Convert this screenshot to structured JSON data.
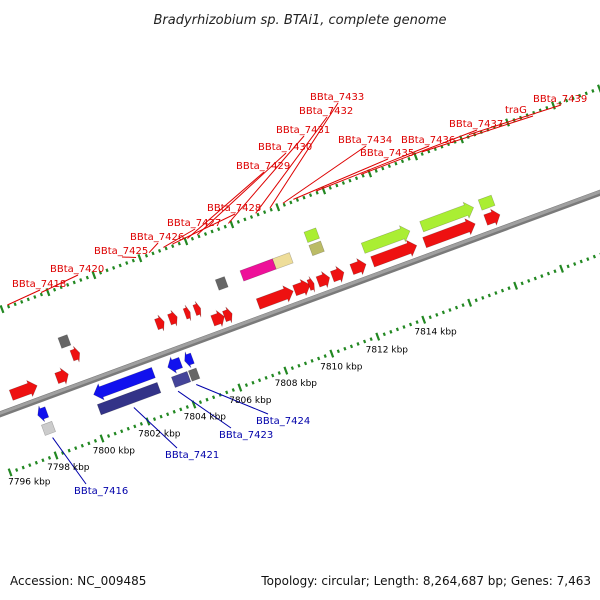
{
  "title": "Bradyrhizobium sp. BTAi1, complete genome",
  "footer": {
    "accession": "Accession: NC_009485",
    "summary": "Topology: circular; Length: 8,264,687 bp; Genes: 7,463"
  },
  "colors": {
    "label_top": "#dd0000",
    "label_bottom": "#0000aa",
    "backbone": "#a0a0a0",
    "tick": "#228822"
  },
  "scale_labels": [
    {
      "t": 0.02,
      "text": "7796 kbp"
    },
    {
      "t": 0.08,
      "text": "7798 kbp"
    },
    {
      "t": 0.15,
      "text": "7800 kbp"
    },
    {
      "t": 0.22,
      "text": "7802 kbp"
    },
    {
      "t": 0.29,
      "text": "7804 kbp"
    },
    {
      "t": 0.36,
      "text": "7806 kbp"
    },
    {
      "t": 0.43,
      "text": "7808 kbp"
    },
    {
      "t": 0.5,
      "text": "7810 kbp"
    },
    {
      "t": 0.57,
      "text": "7812 kbp"
    },
    {
      "t": 0.645,
      "text": "7814 kbp"
    }
  ],
  "genes": [
    {
      "t": 0.0,
      "len": 0.015,
      "lane": 1,
      "dir": "L",
      "color": "#ee1111"
    },
    {
      "t": 0.04,
      "len": 0.04,
      "lane": 1,
      "dir": "R",
      "color": "#ee1111"
    },
    {
      "t": 0.11,
      "len": 0.018,
      "lane": 1,
      "dir": "R",
      "color": "#ee1111"
    },
    {
      "t": 0.142,
      "len": 0.012,
      "lane": 2,
      "dir": "R",
      "color": "#ee1111"
    },
    {
      "t": 0.132,
      "len": 0.014,
      "lane": 3,
      "dir": "N",
      "color": "#666666"
    },
    {
      "t": 0.272,
      "len": 0.012,
      "lane": 2,
      "dir": "R",
      "color": "#ee1111"
    },
    {
      "t": 0.292,
      "len": 0.012,
      "lane": 2,
      "dir": "R",
      "color": "#ee1111"
    },
    {
      "t": 0.316,
      "len": 0.008,
      "lane": 2,
      "dir": "R",
      "color": "#ee1111"
    },
    {
      "t": 0.331,
      "len": 0.009,
      "lane": 2,
      "dir": "R",
      "color": "#ee1111"
    },
    {
      "t": 0.35,
      "len": 0.018,
      "lane": 1,
      "dir": "R",
      "color": "#ee1111"
    },
    {
      "t": 0.368,
      "len": 0.012,
      "lane": 1,
      "dir": "R",
      "color": "#ee1111"
    },
    {
      "t": 0.374,
      "len": 0.014,
      "lane": 3,
      "dir": "N",
      "color": "#666666"
    },
    {
      "t": 0.42,
      "len": 0.054,
      "lane": 1,
      "dir": "R",
      "color": "#ee1111"
    },
    {
      "t": 0.412,
      "len": 0.05,
      "lane": 3,
      "dir": "N",
      "color": "#ee1199"
    },
    {
      "t": 0.462,
      "len": 0.026,
      "lane": 3,
      "dir": "N",
      "color": "#eedd99"
    },
    {
      "t": 0.476,
      "len": 0.024,
      "lane": 1,
      "dir": "R",
      "color": "#ee1111"
    },
    {
      "t": 0.498,
      "len": 0.008,
      "lane": 1,
      "dir": "R",
      "color": "#ee1111"
    },
    {
      "t": 0.512,
      "len": 0.018,
      "lane": 1,
      "dir": "R",
      "color": "#ee1111"
    },
    {
      "t": 0.534,
      "len": 0.018,
      "lane": 1,
      "dir": "R",
      "color": "#ee1111"
    },
    {
      "t": 0.518,
      "len": 0.018,
      "lane": 3,
      "dir": "N",
      "color": "#bbbb66"
    },
    {
      "t": 0.518,
      "len": 0.018,
      "lane": 4,
      "dir": "N",
      "color": "#aaee33"
    },
    {
      "t": 0.564,
      "len": 0.022,
      "lane": 1,
      "dir": "R",
      "color": "#ee1111"
    },
    {
      "t": 0.596,
      "len": 0.068,
      "lane": 1,
      "dir": "R",
      "color": "#ee1111"
    },
    {
      "t": 0.59,
      "len": 0.072,
      "lane": 2,
      "dir": "R",
      "color": "#aaee33"
    },
    {
      "t": 0.676,
      "len": 0.078,
      "lane": 1,
      "dir": "R",
      "color": "#ee1111"
    },
    {
      "t": 0.68,
      "len": 0.08,
      "lane": 2,
      "dir": "R",
      "color": "#aaee33"
    },
    {
      "t": 0.77,
      "len": 0.022,
      "lane": 1,
      "dir": "R",
      "color": "#ee1111"
    },
    {
      "t": 0.77,
      "len": 0.02,
      "lane": 2,
      "dir": "N",
      "color": "#aaee33"
    },
    {
      "t": 0.066,
      "len": 0.014,
      "lane": -1,
      "dir": "L",
      "color": "#1111ee"
    },
    {
      "t": 0.066,
      "len": 0.016,
      "lane": -2,
      "dir": "N",
      "color": "#cccccc"
    },
    {
      "t": 0.152,
      "len": 0.092,
      "lane": -1,
      "dir": "L",
      "color": "#1111ee"
    },
    {
      "t": 0.152,
      "len": 0.092,
      "lane": -2,
      "dir": "N",
      "color": "#333388"
    },
    {
      "t": 0.266,
      "len": 0.02,
      "lane": -1,
      "dir": "L",
      "color": "#1111ee"
    },
    {
      "t": 0.266,
      "len": 0.024,
      "lane": -2,
      "dir": "N",
      "color": "#444499"
    },
    {
      "t": 0.292,
      "len": 0.012,
      "lane": -1,
      "dir": "L",
      "color": "#1111ee"
    },
    {
      "t": 0.292,
      "len": 0.012,
      "lane": -2,
      "dir": "N",
      "color": "#666666"
    }
  ],
  "labels_top": [
    {
      "text": "BBta_7418",
      "t": 0.08
    },
    {
      "text": "BBta_7420",
      "t": 0.132
    },
    {
      "text": "BBta_7425",
      "t": 0.278
    },
    {
      "text": "BBta_7426",
      "t": 0.298
    },
    {
      "text": "BBta_7427",
      "t": 0.32
    },
    {
      "text": "BBta_7428",
      "t": 0.334
    },
    {
      "text": "BBta_7429",
      "t": 0.357
    },
    {
      "text": "BBta_7430",
      "t": 0.372
    },
    {
      "text": "BBta_7431",
      "t": 0.42
    },
    {
      "text": "BBta_7432",
      "t": 0.462
    },
    {
      "text": "BBta_7433",
      "t": 0.484
    },
    {
      "text": "BBta_7434",
      "t": 0.504
    },
    {
      "text": "BBta_7435",
      "t": 0.52
    },
    {
      "text": "BBta_7436",
      "t": 0.555
    },
    {
      "text": "BBta_7437",
      "t": 0.624
    },
    {
      "text": "traG",
      "t": 0.718
    },
    {
      "text": "BBta_7439",
      "t": 0.79
    }
  ],
  "labels_bottom": [
    {
      "text": "BBta_7416",
      "t": 0.075
    },
    {
      "text": "BBta_7421",
      "t": 0.2
    },
    {
      "text": "BBta_7423",
      "t": 0.268
    },
    {
      "text": "BBta_7424",
      "t": 0.296
    }
  ]
}
